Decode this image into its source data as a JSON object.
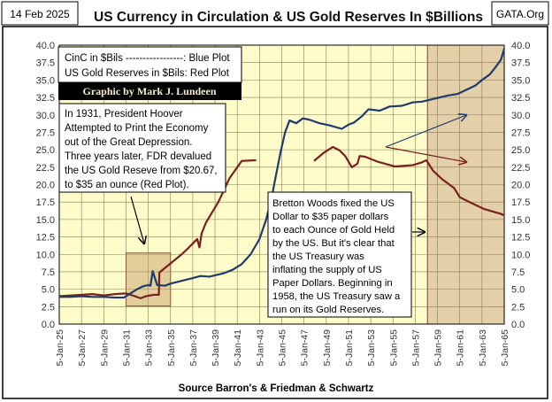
{
  "header": {
    "date": "14 Feb 2025",
    "title": "US Currency in Circulation & US Gold Reserves In $Billions",
    "site": "GATA.Org"
  },
  "legend": {
    "line1": "CinC in $Bils -----------------: Blue Plot",
    "line2": "US Gold Reserves in $Bils:  Red Plot",
    "credit": "Graphic by Mark J. Lundeen"
  },
  "annotations": {
    "hoover": [
      "In 1931, President Hoover",
      "Attempted to Print the Economy",
      "out of the Great Depression.",
      "Three years later, FDR devalued",
      "the US Gold Reseve from $20.67,",
      "to $35 an ounce (Red Plot)."
    ],
    "bretton": [
      "Bretton Woods fixed the US",
      "Dollar to $35 paper dollars",
      "to each Ounce of Gold Held",
      "by the US.  But it's clear that",
      "the US Treasury was",
      "inflating the supply of US",
      "Paper Dollars.  Beginning in",
      "1958, the US Treasury saw a",
      "run on its Gold Reserves."
    ]
  },
  "footer": {
    "source": "Source Barron's & Friedman & Schwartz"
  },
  "chart_data": {
    "type": "line",
    "title": "US Currency in Circulation & US Gold Reserves In $Billions",
    "xlabel": "Source Barron's & Friedman & Schwartz",
    "ylabel": "",
    "xlim": [
      1925,
      1965
    ],
    "ylim": [
      0,
      40
    ],
    "grid": true,
    "x_tick_labels": [
      "5-Jan-25",
      "5-Jan-27",
      "5-Jan-29",
      "5-Jan-31",
      "5-Jan-33",
      "5-Jan-35",
      "5-Jan-37",
      "5-Jan-39",
      "5-Jan-41",
      "5-Jan-43",
      "5-Jan-45",
      "5-Jan-47",
      "5-Jan-49",
      "5-Jan-51",
      "5-Jan-53",
      "5-Jan-55",
      "5-Jan-57",
      "5-Jan-59",
      "5-Jan-61",
      "5-Jan-63",
      "5-Jan-65"
    ],
    "y_tick_labels": [
      "0.0",
      "2.5",
      "5.0",
      "7.5",
      "10.0",
      "12.5",
      "15.0",
      "17.5",
      "20.0",
      "22.5",
      "25.0",
      "27.5",
      "30.0",
      "32.5",
      "35.0",
      "37.5",
      "40.0"
    ],
    "shaded_ranges": [
      {
        "from": 1958.1,
        "to": 1965,
        "color": "#e3cfa8"
      }
    ],
    "highlight_box": {
      "x": [
        1931.0,
        1935.0
      ],
      "y": [
        2.6,
        10.2
      ]
    },
    "series": [
      {
        "color": "#1f3b6e",
        "x": [
          1925,
          1926,
          1927,
          1928,
          1929,
          1930,
          1930.8,
          1931.5,
          1932,
          1932.5,
          1933,
          1933.2,
          1933.4,
          1933.8,
          1934.5,
          1935,
          1936,
          1937,
          1937.7,
          1938.5,
          1939.8,
          1940.6,
          1941.4,
          1942.2,
          1943,
          1943.6,
          1944.1,
          1944.5,
          1944.9,
          1945.3,
          1945.7,
          1946.3,
          1946.9,
          1947.5,
          1948.4,
          1949.3,
          1950.4,
          1951,
          1951.5,
          1952.2,
          1952.8,
          1953.8,
          1954.7,
          1955.8,
          1956.8,
          1957.6,
          1958.4,
          1959.2,
          1960,
          1960.8,
          1961.6,
          1962.4,
          1963.0,
          1963.7,
          1964.2,
          1964.7,
          1965
        ],
        "y": [
          3.9,
          3.9,
          4.0,
          3.9,
          3.9,
          3.8,
          3.8,
          4.5,
          5.0,
          5.4,
          5.6,
          5.5,
          7.6,
          5.6,
          5.5,
          5.8,
          6.2,
          6.6,
          6.9,
          6.8,
          7.3,
          7.8,
          8.6,
          10.0,
          12.2,
          15.0,
          18.2,
          21.5,
          24.7,
          27.5,
          29.2,
          28.8,
          29.5,
          29.3,
          28.8,
          28.5,
          28.0,
          28.6,
          28.9,
          29.8,
          30.8,
          30.6,
          31.2,
          31.3,
          31.8,
          31.9,
          32.2,
          32.5,
          32.8,
          33.0,
          33.6,
          34.2,
          35.0,
          35.8,
          36.8,
          37.9,
          39.5
        ]
      },
      {
        "color": "#7a1f1f",
        "x": [
          1925,
          1926,
          1927,
          1928,
          1929,
          1930,
          1931,
          1931.8,
          1932.3,
          1932.8,
          1933.5,
          1933.95,
          1934.0,
          1935.0,
          1936.0,
          1936.6,
          1937.4,
          1937.6,
          1937.8,
          1938.2,
          1939.3,
          1940.3,
          1941.4,
          1942.7
        ],
        "y": [
          4.0,
          4.1,
          4.2,
          4.3,
          4.1,
          4.3,
          4.4,
          4.0,
          3.7,
          4.0,
          4.2,
          4.2,
          7.4,
          8.7,
          10.0,
          10.9,
          12.2,
          11.0,
          13.0,
          14.6,
          17.5,
          20.9,
          23.4,
          23.5
        ],
        "x2": [
          1947.9,
          1948.8,
          1949.6,
          1950.2,
          1950.7,
          1951.3,
          1951.8,
          1952.0,
          1952.5,
          1953.6,
          1955.2,
          1956.8,
          1957.6,
          1958.0,
          1958.6,
          1959.4,
          1960.5,
          1961.0,
          1962.0,
          1963.2,
          1964.7,
          1965
        ],
        "y2": [
          23.4,
          24.6,
          25.4,
          24.9,
          24.1,
          22.5,
          23.0,
          24.1,
          24.0,
          23.3,
          22.6,
          22.8,
          23.2,
          23.5,
          22.0,
          20.8,
          19.5,
          18.2,
          17.4,
          16.5,
          15.8,
          15.6
        ]
      }
    ]
  }
}
